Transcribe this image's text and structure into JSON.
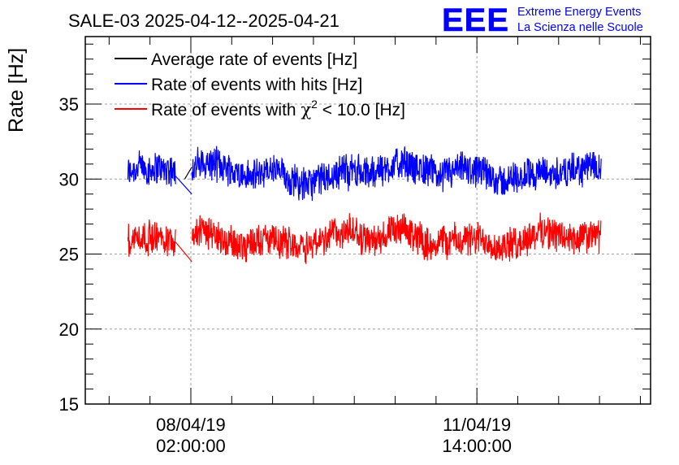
{
  "chart_data": {
    "type": "line",
    "title": "SALE-03 2025-04-12--2025-04-21",
    "ylabel": "Rate [Hz]",
    "xlabel": "",
    "ylim": [
      15,
      39.5
    ],
    "yticks": [
      15,
      20,
      25,
      30,
      35
    ],
    "xticks": [
      {
        "date": "08/04/19",
        "time": "02:00:00",
        "hours": 0
      },
      {
        "date": "11/04/19",
        "time": "14:00:00",
        "hours": 84
      }
    ],
    "xlim_hours": [
      -31,
      135
    ],
    "grid": true,
    "legend_position": "top-left",
    "series": [
      {
        "name": "Average rate of events [Hz]",
        "color": "#000000",
        "segments": [
          [
            {
              "x": -1.8,
              "y": 30.0
            },
            {
              "x": 0.3,
              "y": 30.8
            }
          ]
        ]
      },
      {
        "name": "Rate of events with hits [Hz]",
        "color": "#0000ff",
        "segments": [
          {
            "start": -18.5,
            "end": -4.5,
            "mean": 30.6,
            "amp": 1.3
          },
          {
            "start": 0.3,
            "end": 120.5,
            "mean": 30.4,
            "amp": 1.3
          },
          [
            {
              "x": -4.5,
              "y": 30.2
            },
            {
              "x": 0.3,
              "y": 29.0
            }
          ]
        ]
      },
      {
        "name": "Rate of events with χ² < 10.0 [Hz]",
        "color": "#ff0000",
        "segments": [
          {
            "start": -18.5,
            "end": -4.5,
            "mean": 25.8,
            "amp": 1.3
          },
          {
            "start": 0.3,
            "end": 120.5,
            "mean": 26.1,
            "amp": 1.3
          },
          [
            {
              "x": -4.5,
              "y": 25.8
            },
            {
              "x": 0.3,
              "y": 24.5
            }
          ]
        ]
      }
    ]
  },
  "legend": {
    "item1": "Average rate of events [Hz]",
    "item2": "Rate of events with hits [Hz]",
    "item3_pre": "Rate of events with ",
    "item3_chi": "χ",
    "item3_sup": "2",
    "item3_post": " < 10.0 [Hz]"
  },
  "logo": {
    "mark": "EEE",
    "line1": "Extreme Energy Events",
    "line2": "La Scienza nelle Scuole",
    "color": "#0000ff"
  }
}
